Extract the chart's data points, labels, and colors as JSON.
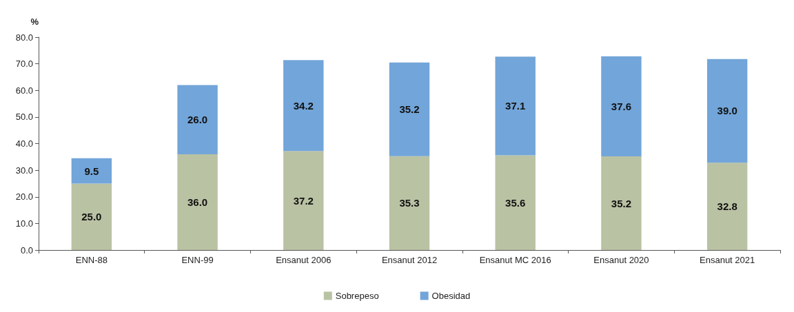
{
  "chart_data": {
    "type": "bar",
    "stacked": true,
    "ylabel": "%",
    "categories": [
      "ENN-88",
      "ENN-99",
      "Ensanut 2006",
      "Ensanut 2012",
      "Ensanut MC 2016",
      "Ensanut 2020",
      "Ensanut 2021"
    ],
    "series": [
      {
        "name": "Sobrepeso",
        "color": "#b9c2a3",
        "values": [
          25.0,
          36.0,
          37.2,
          35.3,
          35.6,
          35.2,
          32.8
        ],
        "value_labels": [
          "25.0",
          "36.0",
          "37.2",
          "35.3",
          "35.6",
          "35.2",
          "32.8"
        ]
      },
      {
        "name": "Obesidad",
        "color": "#72a5d9",
        "values": [
          9.5,
          26.0,
          34.2,
          35.2,
          37.1,
          37.6,
          39.0
        ],
        "value_labels": [
          "9.5",
          "26.0",
          "34.2",
          "35.2",
          "37.1",
          "37.6",
          "39.0"
        ]
      }
    ],
    "ylim": [
      0,
      80
    ],
    "yticks": [
      {
        "value": 0,
        "label": "0.0"
      },
      {
        "value": 10,
        "label": "10.0"
      },
      {
        "value": 20,
        "label": "20.0"
      },
      {
        "value": 30,
        "label": "30.0"
      },
      {
        "value": 40,
        "label": "40.0"
      },
      {
        "value": 50,
        "label": "50.0"
      },
      {
        "value": 60,
        "label": "60.0"
      },
      {
        "value": 70,
        "label": "70.0"
      },
      {
        "value": 80,
        "label": "80.0"
      }
    ],
    "grid": false,
    "legend": "bottom"
  }
}
